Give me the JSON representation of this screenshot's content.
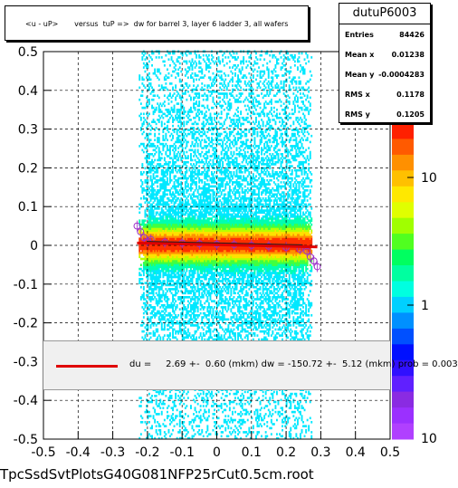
{
  "title": "<u - uP>       versus  tuP =>  dw for barrel 3, layer 6 ladder 3, all wafers",
  "stats": {
    "name": "dutuP6003",
    "rows": [
      {
        "label": "Entries",
        "value": "84426"
      },
      {
        "label": "Mean x",
        "value": "0.01238"
      },
      {
        "label": "Mean y",
        "value": "-0.0004283"
      },
      {
        "label": "RMS x",
        "value": "0.1178"
      },
      {
        "label": "RMS y",
        "value": "0.1205"
      }
    ]
  },
  "fit_text": "du =     2.69 +-  0.60 (mkm) dw = -150.72 +-  5.12 (mkm) prob = 0.003",
  "footer": "TpcSsdSvtPlotsG40G081NFP25rCut0.5cm.root",
  "colors": {
    "fit_line": "#e00000",
    "points": "#9b30c8"
  },
  "chart_data": {
    "type": "heatmap",
    "xlim": [
      -0.5,
      0.5
    ],
    "ylim": [
      -0.5,
      0.5
    ],
    "xticks": [
      "-0.5",
      "-0.4",
      "-0.3",
      "-0.2",
      "-0.1",
      "0",
      "0.1",
      "0.2",
      "0.3",
      "0.4",
      "0.5"
    ],
    "yticks": [
      "-0.5",
      "-0.4",
      "-0.3",
      "-0.2",
      "-0.1",
      "0",
      "0.1",
      "0.2",
      "0.3",
      "0.4",
      "0.5"
    ],
    "grid": true,
    "z_scale": "log",
    "z_ticks": [
      "1",
      "10"
    ],
    "z_range": [
      0,
      10
    ],
    "fit_line": {
      "x": [
        -0.23,
        0.29
      ],
      "y": [
        0.006,
        -0.004
      ]
    },
    "profile_points": {
      "x": [
        -0.23,
        -0.22,
        -0.21,
        -0.2,
        -0.19,
        -0.15,
        -0.1,
        -0.05,
        0,
        0.05,
        0.1,
        0.15,
        0.2,
        0.24,
        0.26,
        0.27,
        0.28,
        0.29
      ],
      "y": [
        0.05,
        0.035,
        0.02,
        0.01,
        0.015,
        0.008,
        0.006,
        0.004,
        0.003,
        0.002,
        0.0,
        -0.002,
        -0.005,
        -0.01,
        -0.015,
        -0.03,
        -0.04,
        -0.055
      ]
    }
  }
}
